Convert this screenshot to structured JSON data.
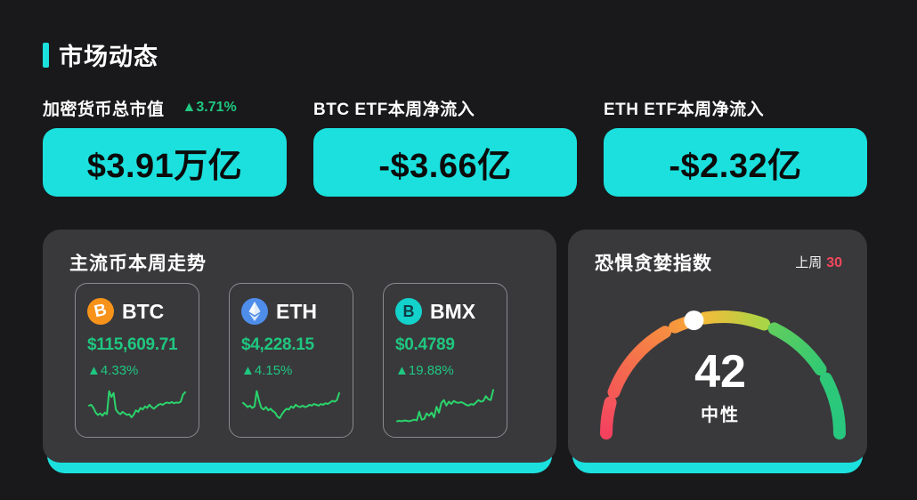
{
  "header": {
    "title": "市场动态"
  },
  "stats": [
    {
      "label": "加密货币总市值",
      "change": "▲3.71%",
      "value": "$3.91万亿"
    },
    {
      "label": "BTC ETF本周净流入",
      "value": "-$3.66亿"
    },
    {
      "label": "ETH ETF本周净流入",
      "value": "-$2.32亿"
    }
  ],
  "trend_panel": {
    "title": "主流币本周走势",
    "coins": [
      {
        "symbol": "BTC",
        "icon": "btc-icon",
        "price": "$115,609.71",
        "change": "▲4.33%",
        "spark": [
          48,
          50,
          42,
          30,
          24,
          28,
          22,
          30,
          26,
          85,
          70,
          80,
          38,
          30,
          26,
          32,
          28,
          24,
          26,
          18,
          25,
          36,
          32,
          42,
          38,
          46,
          42,
          50,
          44,
          40,
          45,
          50,
          52,
          50,
          54,
          56,
          54,
          57,
          54,
          56,
          55,
          58,
          76,
          82
        ]
      },
      {
        "symbol": "ETH",
        "icon": "eth-icon",
        "price": "$4,228.15",
        "change": "▲4.15%",
        "spark": [
          55,
          50,
          44,
          48,
          42,
          46,
          85,
          60,
          42,
          38,
          44,
          36,
          40,
          34,
          30,
          20,
          16,
          26,
          34,
          40,
          38,
          46,
          42,
          50,
          46,
          44,
          48,
          44,
          46,
          50,
          48,
          52,
          50,
          48,
          52,
          50,
          54,
          52,
          56,
          60,
          58,
          62,
          80
        ]
      },
      {
        "symbol": "BMX",
        "icon": "bmx-icon",
        "price": "$0.4789",
        "change": "▲19.88%",
        "spark": [
          8,
          9,
          8,
          10,
          9,
          8,
          10,
          12,
          10,
          32,
          12,
          14,
          28,
          22,
          30,
          18,
          45,
          30,
          55,
          62,
          48,
          58,
          52,
          60,
          56,
          55,
          57,
          54,
          50,
          48,
          52,
          50,
          56,
          62,
          58,
          60,
          72,
          64,
          62,
          88
        ]
      }
    ]
  },
  "gauge_panel": {
    "title": "恐惧贪婪指数",
    "last_week_label": "上周",
    "last_week_value": "30",
    "value": 42,
    "value_label": "中性"
  },
  "colors": {
    "accent_cyan": "#1BE0DD",
    "text_green": "#1FC780",
    "spark_green": "#2BD36B",
    "alert_red": "#F5475D",
    "panel_bg": "#39393C",
    "page_bg": "#19191B"
  }
}
